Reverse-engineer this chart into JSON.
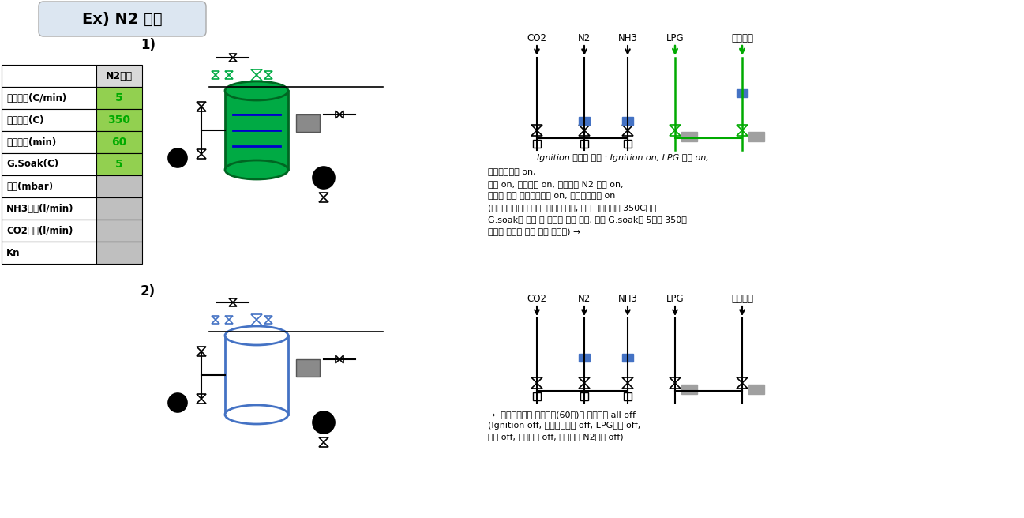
{
  "title": "Ex) N2 히팅",
  "bg_color": "#ffffff",
  "title_bg": "#dce6f1",
  "table_header_bg": "#d9d9d9",
  "table_green_bg": "#92d050",
  "table_gray_bg": "#bfbfbf",
  "table_rows": [
    [
      "승온속도(C/min)",
      "5",
      "green"
    ],
    [
      "설정온도(C)",
      "350",
      "green"
    ],
    [
      "유지시간(min)",
      "60",
      "green"
    ],
    [
      "G.Soak(C)",
      "5",
      "green"
    ],
    [
      "압력(mbar)",
      "",
      "gray"
    ],
    [
      "NH3유량(l/min)",
      "",
      "gray"
    ],
    [
      "CO2유량(l/min)",
      "",
      "gray"
    ],
    [
      "Kn",
      "",
      "gray"
    ]
  ],
  "gas_labels": [
    "CO2",
    "N2",
    "NH3",
    "LPG",
    "진공복압"
  ],
  "annotation1": "Ignition 조건에 따라 : Ignition on, LPG 밸브 on,",
  "annotation2_lines": [
    "진공복압밸브 on,",
    "히터 on, 컨벡션팬 on, 컨벡션팬 N2 밸브 on,",
    "조건에 따라 가압방출밸브 on, 안전방출밸브 on",
    "(설정승온속도로 설정온도까지 상승, 물론 설정온도가 350C이면",
    "G.soak에 의해 그 편차를 갖고 시작, 만약 G.soak가 5이면 350에",
    "도달한 것으로 보고 시간 카운트) →"
  ],
  "annotation3": "→  설정온도에서 유지시간(60분)이 완료되면 all off",
  "annotation3b": "(Ignition off, 진공복압밸브 off, LPG밸브 off,",
  "annotation3c": "히터 off, 컨벡션팬 off, 컨벡션팬 N2밸브 off)"
}
